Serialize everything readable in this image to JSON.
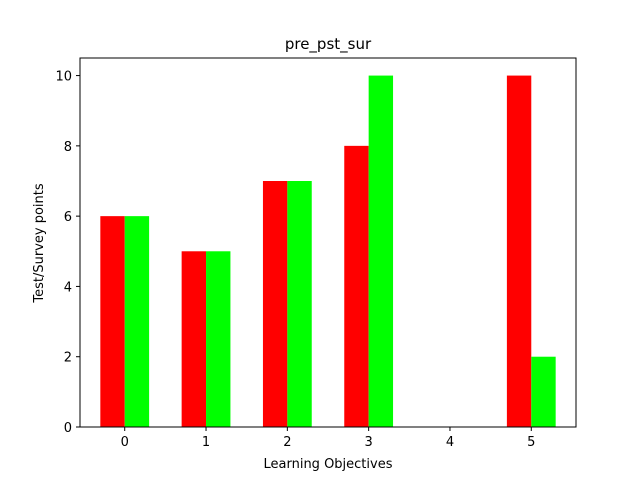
{
  "chart_data": {
    "type": "bar",
    "title": "pre_pst_sur",
    "xlabel": "Learning Objectives",
    "ylabel": "Test/Survey points",
    "categories": [
      "0",
      "1",
      "2",
      "3",
      "4",
      "5"
    ],
    "series": [
      {
        "values": [
          6,
          5,
          7,
          8,
          0,
          10
        ],
        "color": "#ff0000"
      },
      {
        "values": [
          6,
          5,
          7,
          10,
          0,
          2
        ],
        "color": "#00ff00"
      }
    ],
    "yticks": [
      0,
      2,
      4,
      6,
      8,
      10
    ],
    "xlim": [
      -0.55,
      5.55
    ],
    "ylim": [
      0,
      10.5
    ],
    "grid": false
  }
}
